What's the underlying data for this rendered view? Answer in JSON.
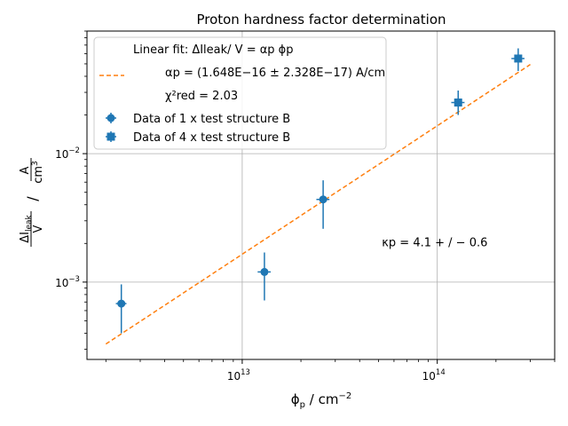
{
  "chart_data": {
    "type": "scatter",
    "title": "Proton hardness factor determination",
    "xlabel": {
      "base": "ϕ",
      "sub": "p",
      "unit": " / cm",
      "sup": "−2"
    },
    "ylabel": {
      "num": "ΔI",
      "num_sub": "leak",
      "den": "V",
      "sep": " / ",
      "unit_num": "A",
      "unit_den": "cm",
      "unit_den_sup": "3"
    },
    "xscale": "log",
    "yscale": "log",
    "xlim": [
      1600000000000.0,
      400000000000000.0
    ],
    "ylim": [
      0.00025,
      0.09
    ],
    "grid": true,
    "x_ticks": [
      {
        "value": 10000000000000.0,
        "base": "10",
        "exp": "13"
      },
      {
        "value": 100000000000000.0,
        "base": "10",
        "exp": "14"
      }
    ],
    "y_ticks": [
      {
        "value": 0.001,
        "base": "10",
        "exp": "−3"
      },
      {
        "value": 0.01,
        "base": "10",
        "exp": "−2"
      }
    ],
    "series": [
      {
        "name": "Data of 1 x test structure B",
        "marker": "circle",
        "color": "#1f77b4",
        "points": [
          {
            "x": 2400000000000.0,
            "y": 0.00068,
            "xerr": 150000000000.0,
            "ylo": 0.0004,
            "yhi": 0.00096
          },
          {
            "x": 13000000000000.0,
            "y": 0.0012,
            "xerr": 1000000000000.0,
            "ylo": 0.00072,
            "yhi": 0.0017
          },
          {
            "x": 26000000000000.0,
            "y": 0.0044,
            "xerr": 2000000000000.0,
            "ylo": 0.0026,
            "yhi": 0.0062
          }
        ]
      },
      {
        "name": "Data of 4 x test structure B",
        "marker": "square",
        "color": "#1f77b4",
        "points": [
          {
            "x": 128000000000000.0,
            "y": 0.025,
            "xerr": 10000000000000.0,
            "ylo": 0.02,
            "yhi": 0.031
          },
          {
            "x": 260000000000000.0,
            "y": 0.055,
            "xerr": 20000000000000.0,
            "ylo": 0.044,
            "yhi": 0.066
          }
        ]
      }
    ],
    "fit": {
      "name": "Linear fit: ΔIleak/ V = αp ϕp",
      "color": "#ff7f0e",
      "style": "dashed",
      "x_range": [
        2000000000000.0,
        300000000000000.0
      ],
      "slope": 1.648e-16,
      "alpha_label": "αp = (1.648E−16 ± 2.328E−17) A/cm",
      "chi2_label": "χ²red = 2.03"
    },
    "annotation": {
      "text": "κp = 4.1 + / − 0.6",
      "x": 52000000000000.0,
      "y": 0.00205
    },
    "legend": "upper-left"
  }
}
